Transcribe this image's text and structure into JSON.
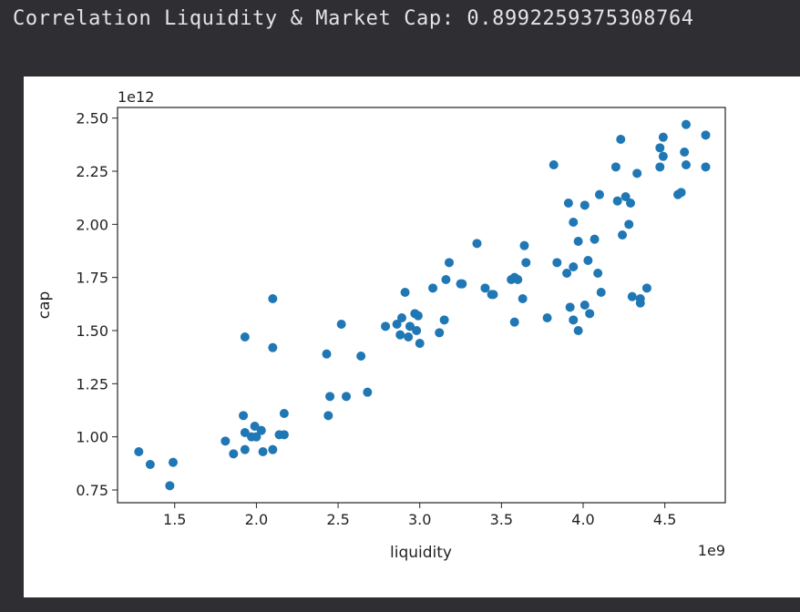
{
  "output": {
    "text": "Correlation Liquidity & Market Cap: 0.8992259375308764"
  },
  "chart_data": {
    "type": "scatter",
    "title": "",
    "xlabel": "liquidity",
    "ylabel": "cap",
    "x_offset_label": "1e9",
    "y_offset_label": "1e12",
    "xlim": [
      1.15,
      4.87
    ],
    "ylim": [
      0.69,
      2.55
    ],
    "x_ticks": [
      1.5,
      2.0,
      2.5,
      3.0,
      3.5,
      4.0,
      4.5
    ],
    "x_tick_labels": [
      "1.5",
      "2.0",
      "2.5",
      "3.0",
      "3.5",
      "4.0",
      "4.5"
    ],
    "y_ticks": [
      0.75,
      1.0,
      1.25,
      1.5,
      1.75,
      2.0,
      2.25,
      2.5
    ],
    "y_tick_labels": [
      "0.75",
      "1.00",
      "1.25",
      "1.50",
      "1.75",
      "2.00",
      "2.25",
      "2.50"
    ],
    "grid": false,
    "marker_color": "#1f77b4",
    "points": [
      [
        1.28,
        0.93
      ],
      [
        1.35,
        0.87
      ],
      [
        1.47,
        0.77
      ],
      [
        1.49,
        0.88
      ],
      [
        1.81,
        0.98
      ],
      [
        1.86,
        0.92
      ],
      [
        1.92,
        1.1
      ],
      [
        1.93,
        1.47
      ],
      [
        1.93,
        1.02
      ],
      [
        1.93,
        0.94
      ],
      [
        1.97,
        1.0
      ],
      [
        1.99,
        1.05
      ],
      [
        2.0,
        1.0
      ],
      [
        2.03,
        1.03
      ],
      [
        2.04,
        0.93
      ],
      [
        2.1,
        1.65
      ],
      [
        2.1,
        1.42
      ],
      [
        2.1,
        0.94
      ],
      [
        2.14,
        1.01
      ],
      [
        2.17,
        1.11
      ],
      [
        2.17,
        1.01
      ],
      [
        2.43,
        1.39
      ],
      [
        2.44,
        1.1
      ],
      [
        2.45,
        1.19
      ],
      [
        2.52,
        1.53
      ],
      [
        2.55,
        1.19
      ],
      [
        2.64,
        1.38
      ],
      [
        2.68,
        1.21
      ],
      [
        2.79,
        1.52
      ],
      [
        2.86,
        1.53
      ],
      [
        2.88,
        1.48
      ],
      [
        2.89,
        1.56
      ],
      [
        2.91,
        1.68
      ],
      [
        2.93,
        1.47
      ],
      [
        2.94,
        1.52
      ],
      [
        2.97,
        1.58
      ],
      [
        2.98,
        1.5
      ],
      [
        2.99,
        1.57
      ],
      [
        3.0,
        1.44
      ],
      [
        3.08,
        1.7
      ],
      [
        3.12,
        1.49
      ],
      [
        3.15,
        1.55
      ],
      [
        3.16,
        1.74
      ],
      [
        3.18,
        1.82
      ],
      [
        3.25,
        1.72
      ],
      [
        3.26,
        1.72
      ],
      [
        3.35,
        1.91
      ],
      [
        3.4,
        1.7
      ],
      [
        3.44,
        1.67
      ],
      [
        3.45,
        1.67
      ],
      [
        3.56,
        1.74
      ],
      [
        3.58,
        1.54
      ],
      [
        3.58,
        1.75
      ],
      [
        3.6,
        1.74
      ],
      [
        3.63,
        1.65
      ],
      [
        3.64,
        1.9
      ],
      [
        3.65,
        1.82
      ],
      [
        3.78,
        1.56
      ],
      [
        3.82,
        2.28
      ],
      [
        3.84,
        1.82
      ],
      [
        3.9,
        1.77
      ],
      [
        3.91,
        2.1
      ],
      [
        3.92,
        1.61
      ],
      [
        3.94,
        2.01
      ],
      [
        3.94,
        1.8
      ],
      [
        3.94,
        1.55
      ],
      [
        3.97,
        1.5
      ],
      [
        3.97,
        1.92
      ],
      [
        4.01,
        1.62
      ],
      [
        4.01,
        2.09
      ],
      [
        4.03,
        1.83
      ],
      [
        4.04,
        1.58
      ],
      [
        4.07,
        1.93
      ],
      [
        4.09,
        1.77
      ],
      [
        4.1,
        2.14
      ],
      [
        4.11,
        1.68
      ],
      [
        4.2,
        2.27
      ],
      [
        4.21,
        2.11
      ],
      [
        4.23,
        2.4
      ],
      [
        4.24,
        1.95
      ],
      [
        4.26,
        2.13
      ],
      [
        4.28,
        2.0
      ],
      [
        4.29,
        2.1
      ],
      [
        4.3,
        1.66
      ],
      [
        4.33,
        2.24
      ],
      [
        4.35,
        1.65
      ],
      [
        4.35,
        1.63
      ],
      [
        4.39,
        1.7
      ],
      [
        4.47,
        2.36
      ],
      [
        4.47,
        2.27
      ],
      [
        4.49,
        2.41
      ],
      [
        4.49,
        2.32
      ],
      [
        4.58,
        2.14
      ],
      [
        4.6,
        2.15
      ],
      [
        4.62,
        2.34
      ],
      [
        4.63,
        2.28
      ],
      [
        4.63,
        2.47
      ],
      [
        4.75,
        2.42
      ],
      [
        4.75,
        2.27
      ]
    ]
  }
}
